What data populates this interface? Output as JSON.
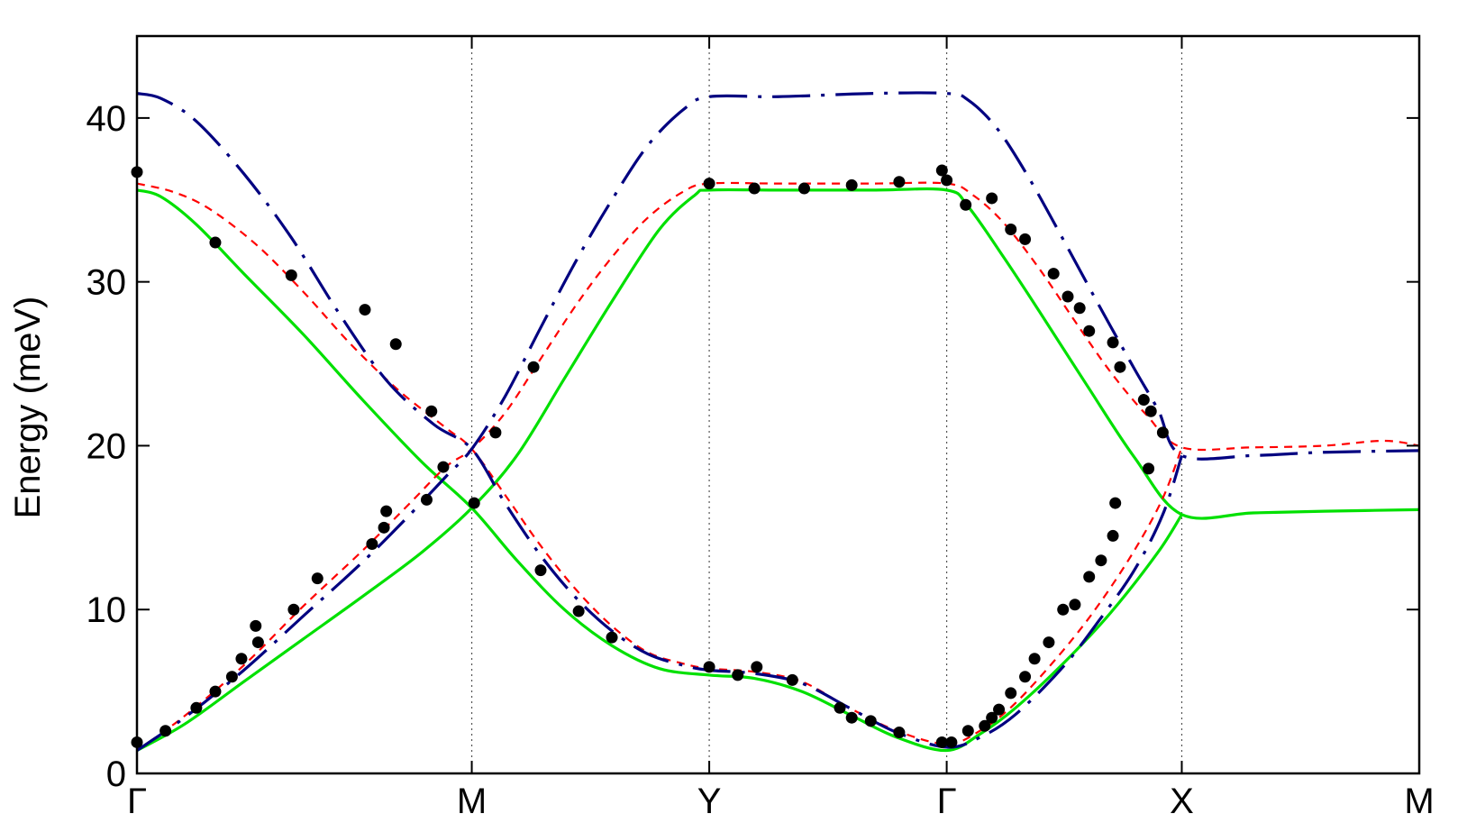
{
  "chart_data": {
    "type": "line",
    "title": "",
    "xlabel": "",
    "ylabel": "Energy (meV)",
    "ylim": [
      0,
      45
    ],
    "xlim": [
      0,
      5.4
    ],
    "yticks": [
      0,
      10,
      20,
      30,
      40
    ],
    "high_symmetry_points": [
      {
        "label": "Γ",
        "x": 0
      },
      {
        "label": "M",
        "x": 1.41
      },
      {
        "label": "Y",
        "x": 2.41
      },
      {
        "label": "Γ",
        "x": 3.41
      },
      {
        "label": "X",
        "x": 4.4
      },
      {
        "label": "M",
        "x": 5.4
      }
    ],
    "grid": "vertical dotted lines at high-symmetry points",
    "legend": "none",
    "colors": {
      "green": "#00e000",
      "red": "#ff0000",
      "navy": "#000080",
      "points": "#000000"
    },
    "series": [
      {
        "style": "solid",
        "color": "#00e000",
        "points": [
          [
            0,
            1.4
          ],
          [
            0.2,
            3.0
          ],
          [
            0.45,
            5.6
          ],
          [
            0.7,
            8.2
          ],
          [
            0.95,
            10.8
          ],
          [
            1.2,
            13.5
          ],
          [
            1.41,
            16.2
          ],
          [
            1.6,
            19.4
          ],
          [
            1.8,
            24.1
          ],
          [
            2.0,
            28.8
          ],
          [
            2.2,
            33.2
          ],
          [
            2.35,
            35.3
          ],
          [
            2.41,
            35.6
          ],
          [
            2.7,
            35.6
          ],
          [
            3.1,
            35.6
          ],
          [
            3.41,
            35.6
          ],
          [
            3.5,
            34.6
          ],
          [
            3.65,
            31.5
          ],
          [
            3.8,
            28.2
          ],
          [
            4.0,
            23.7
          ],
          [
            4.2,
            19.3
          ],
          [
            4.4,
            15.8
          ],
          [
            4.7,
            15.9
          ],
          [
            5.0,
            16.0
          ],
          [
            5.4,
            16.1
          ]
        ]
      },
      {
        "style": "solid",
        "color": "#00e000",
        "points": [
          [
            0,
            35.6
          ],
          [
            0.1,
            35.2
          ],
          [
            0.25,
            33.5
          ],
          [
            0.45,
            30.5
          ],
          [
            0.7,
            26.8
          ],
          [
            0.95,
            22.8
          ],
          [
            1.2,
            19.0
          ],
          [
            1.41,
            16.2
          ],
          [
            1.6,
            13.0
          ],
          [
            1.8,
            10.0
          ],
          [
            2.0,
            7.8
          ],
          [
            2.2,
            6.4
          ],
          [
            2.41,
            6.0
          ],
          [
            2.6,
            5.8
          ],
          [
            2.8,
            5.0
          ],
          [
            3.0,
            3.6
          ],
          [
            3.2,
            2.2
          ],
          [
            3.41,
            1.4
          ],
          [
            3.55,
            2.4
          ],
          [
            3.7,
            4.0
          ],
          [
            3.9,
            6.7
          ],
          [
            4.1,
            9.8
          ],
          [
            4.3,
            13.5
          ],
          [
            4.4,
            15.8
          ]
        ]
      },
      {
        "style": "dashed",
        "color": "#ff0000",
        "points": [
          [
            0,
            1.4
          ],
          [
            0.2,
            3.5
          ],
          [
            0.45,
            6.6
          ],
          [
            0.7,
            10.2
          ],
          [
            0.95,
            13.6
          ],
          [
            1.15,
            16.5
          ],
          [
            1.3,
            18.7
          ],
          [
            1.41,
            19.8
          ],
          [
            1.55,
            22.0
          ],
          [
            1.7,
            25.3
          ],
          [
            1.85,
            28.6
          ],
          [
            2.0,
            31.5
          ],
          [
            2.15,
            33.9
          ],
          [
            2.3,
            35.5
          ],
          [
            2.41,
            36.0
          ],
          [
            2.7,
            36.0
          ],
          [
            3.1,
            36.0
          ],
          [
            3.41,
            36.0
          ],
          [
            3.52,
            35.3
          ],
          [
            3.65,
            33.6
          ],
          [
            3.8,
            30.8
          ],
          [
            3.95,
            27.6
          ],
          [
            4.1,
            24.5
          ],
          [
            4.25,
            21.9
          ],
          [
            4.4,
            19.9
          ],
          [
            4.7,
            19.9
          ],
          [
            5.0,
            20.0
          ],
          [
            5.25,
            20.3
          ],
          [
            5.4,
            20.0
          ]
        ]
      },
      {
        "style": "dashed",
        "color": "#ff0000",
        "points": [
          [
            0,
            36.0
          ],
          [
            0.15,
            35.5
          ],
          [
            0.3,
            34.5
          ],
          [
            0.5,
            32.3
          ],
          [
            0.7,
            29.4
          ],
          [
            0.9,
            26.2
          ],
          [
            1.1,
            23.4
          ],
          [
            1.3,
            21.1
          ],
          [
            1.41,
            19.8
          ],
          [
            1.55,
            17.0
          ],
          [
            1.7,
            13.9
          ],
          [
            1.85,
            11.2
          ],
          [
            2.0,
            9.0
          ],
          [
            2.15,
            7.4
          ],
          [
            2.3,
            6.7
          ],
          [
            2.41,
            6.4
          ],
          [
            2.6,
            6.2
          ],
          [
            2.8,
            5.6
          ],
          [
            3.0,
            4.0
          ],
          [
            3.2,
            2.6
          ],
          [
            3.41,
            1.8
          ],
          [
            3.55,
            2.6
          ],
          [
            3.7,
            4.3
          ],
          [
            3.9,
            7.5
          ],
          [
            4.05,
            10.3
          ],
          [
            4.2,
            13.6
          ],
          [
            4.32,
            16.8
          ],
          [
            4.4,
            19.9
          ]
        ]
      },
      {
        "style": "dashdot",
        "color": "#000080",
        "points": [
          [
            0,
            1.4
          ],
          [
            0.2,
            3.4
          ],
          [
            0.45,
            6.3
          ],
          [
            0.7,
            9.6
          ],
          [
            0.95,
            12.9
          ],
          [
            1.15,
            15.8
          ],
          [
            1.3,
            18.1
          ],
          [
            1.41,
            19.8
          ],
          [
            1.55,
            23.0
          ],
          [
            1.7,
            27.2
          ],
          [
            1.85,
            31.3
          ],
          [
            2.0,
            35.0
          ],
          [
            2.15,
            38.3
          ],
          [
            2.3,
            40.5
          ],
          [
            2.41,
            41.3
          ],
          [
            2.7,
            41.3
          ],
          [
            3.1,
            41.5
          ],
          [
            3.41,
            41.5
          ],
          [
            3.5,
            41.1
          ],
          [
            3.62,
            39.4
          ],
          [
            3.75,
            36.5
          ],
          [
            3.9,
            32.6
          ],
          [
            4.05,
            28.6
          ],
          [
            4.2,
            24.7
          ],
          [
            4.3,
            22.2
          ],
          [
            4.4,
            19.4
          ],
          [
            4.7,
            19.4
          ],
          [
            5.0,
            19.6
          ],
          [
            5.4,
            19.7
          ]
        ]
      },
      {
        "style": "dashdot",
        "color": "#000080",
        "points": [
          [
            0,
            41.5
          ],
          [
            0.1,
            41.2
          ],
          [
            0.25,
            39.8
          ],
          [
            0.45,
            36.6
          ],
          [
            0.65,
            32.7
          ],
          [
            0.85,
            28.1
          ],
          [
            1.05,
            24.0
          ],
          [
            1.25,
            21.3
          ],
          [
            1.41,
            19.8
          ],
          [
            1.55,
            16.5
          ],
          [
            1.7,
            13.3
          ],
          [
            1.85,
            10.7
          ],
          [
            2.0,
            8.7
          ],
          [
            2.15,
            7.3
          ],
          [
            2.3,
            6.6
          ],
          [
            2.41,
            6.3
          ],
          [
            2.6,
            6.1
          ],
          [
            2.8,
            5.5
          ],
          [
            3.0,
            4.0
          ],
          [
            3.2,
            2.5
          ],
          [
            3.41,
            1.6
          ],
          [
            3.55,
            2.2
          ],
          [
            3.7,
            3.6
          ],
          [
            3.9,
            6.5
          ],
          [
            4.05,
            9.3
          ],
          [
            4.2,
            12.4
          ],
          [
            4.32,
            15.8
          ],
          [
            4.4,
            19.4
          ]
        ]
      }
    ],
    "scatter": [
      [
        0,
        1.9
      ],
      [
        0.12,
        2.6
      ],
      [
        0.25,
        4.0
      ],
      [
        0.33,
        5.0
      ],
      [
        0.4,
        5.9
      ],
      [
        0.44,
        7.0
      ],
      [
        0.5,
        9.0
      ],
      [
        0.51,
        8.0
      ],
      [
        0.66,
        10.0
      ],
      [
        0.76,
        11.9
      ],
      [
        0.99,
        14.0
      ],
      [
        1.04,
        15.0
      ],
      [
        1.05,
        16.0
      ],
      [
        1.22,
        16.7
      ],
      [
        1.29,
        18.7
      ],
      [
        1.42,
        16.5
      ],
      [
        1.51,
        20.8
      ],
      [
        1.67,
        24.8
      ],
      [
        1.7,
        12.4
      ],
      [
        1.86,
        9.9
      ],
      [
        2.0,
        8.3
      ],
      [
        0,
        36.7
      ],
      [
        0.33,
        32.4
      ],
      [
        0.65,
        30.4
      ],
      [
        0.96,
        28.3
      ],
      [
        1.09,
        26.2
      ],
      [
        1.24,
        22.1
      ],
      [
        2.41,
        36.0
      ],
      [
        2.6,
        35.7
      ],
      [
        2.81,
        35.7
      ],
      [
        3.01,
        35.9
      ],
      [
        3.21,
        36.1
      ],
      [
        3.39,
        36.8
      ],
      [
        3.41,
        36.2
      ],
      [
        3.49,
        34.7
      ],
      [
        3.6,
        35.1
      ],
      [
        3.68,
        33.2
      ],
      [
        3.74,
        32.6
      ],
      [
        3.86,
        30.5
      ],
      [
        3.92,
        29.1
      ],
      [
        3.97,
        28.4
      ],
      [
        4.01,
        27.0
      ],
      [
        4.11,
        26.3
      ],
      [
        4.14,
        24.8
      ],
      [
        4.24,
        22.8
      ],
      [
        4.27,
        22.1
      ],
      [
        4.32,
        20.8
      ],
      [
        4.26,
        18.6
      ],
      [
        4.12,
        16.5
      ],
      [
        2.41,
        6.5
      ],
      [
        2.53,
        6.0
      ],
      [
        2.61,
        6.5
      ],
      [
        2.76,
        5.7
      ],
      [
        2.96,
        4.0
      ],
      [
        3.01,
        3.4
      ],
      [
        3.09,
        3.2
      ],
      [
        3.21,
        2.5
      ],
      [
        3.39,
        1.9
      ],
      [
        3.43,
        1.9
      ],
      [
        3.5,
        2.6
      ],
      [
        3.57,
        2.9
      ],
      [
        3.6,
        3.4
      ],
      [
        3.63,
        3.9
      ],
      [
        3.68,
        4.9
      ],
      [
        3.74,
        5.9
      ],
      [
        3.78,
        7.0
      ],
      [
        3.84,
        8.0
      ],
      [
        3.9,
        10.0
      ],
      [
        3.95,
        10.3
      ],
      [
        4.01,
        12.0
      ],
      [
        4.06,
        13.0
      ],
      [
        4.11,
        14.5
      ]
    ]
  }
}
